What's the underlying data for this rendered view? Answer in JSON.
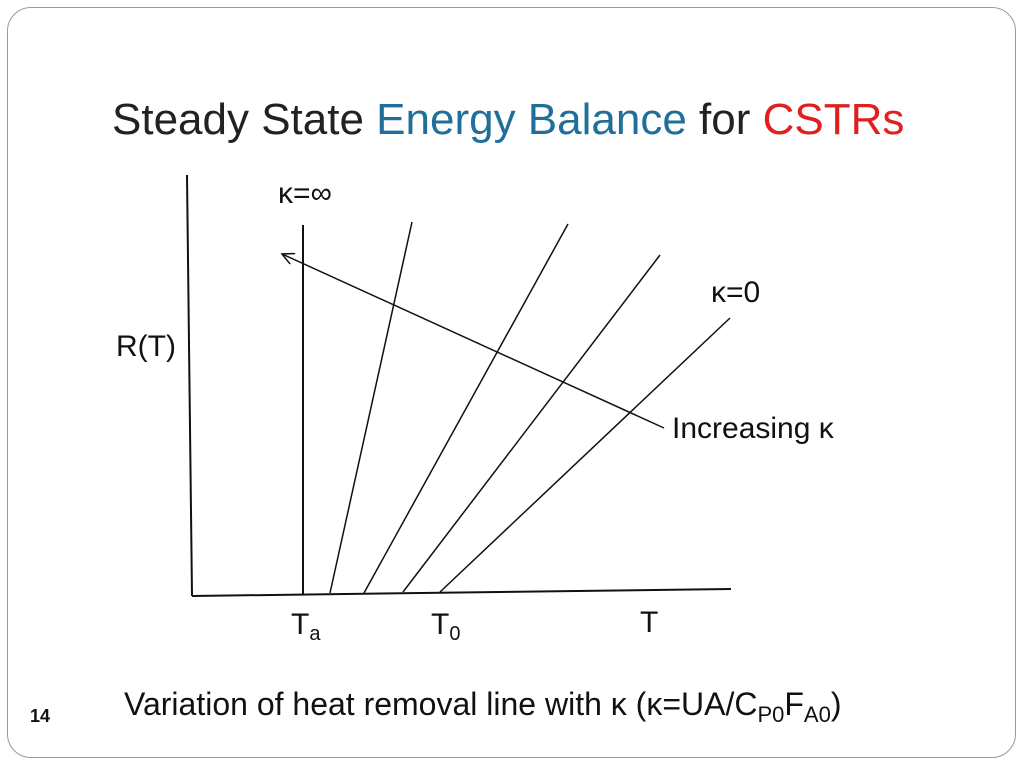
{
  "title": {
    "part1": "Steady State ",
    "part2": "Energy Balance",
    "part3": " for ",
    "part4": "CSTRs",
    "colors": {
      "text": "#222222",
      "blue": "#1f6f9a",
      "red": "#e02020"
    }
  },
  "diagram": {
    "y_axis_label": "R(T)",
    "kappa_infinity_label": "κ=∞",
    "kappa_zero_label": "κ=0",
    "increasing_label": "Increasing κ",
    "x_tick_ta_main": "T",
    "x_tick_ta_sub": "a",
    "x_tick_t0_main": "T",
    "x_tick_t0_sub": "0",
    "x_axis_label": "T"
  },
  "caption": {
    "prefix": "Variation of heat removal line with κ (κ=UA/C",
    "sub1": "P0",
    "mid": "F",
    "sub2": "A0",
    "suffix": ")"
  },
  "page_number": "14"
}
